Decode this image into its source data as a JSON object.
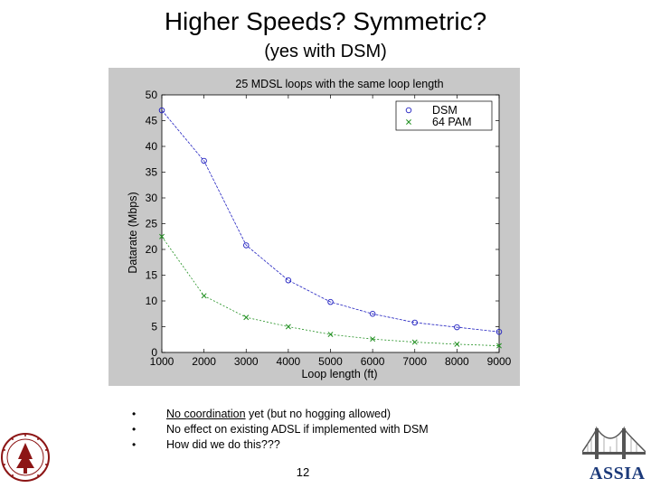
{
  "slide": {
    "title": "Higher Speeds? Symmetric?",
    "subtitle": "(yes with DSM)",
    "bullets": [
      {
        "underlined": "No coordination",
        "rest": " yet (but no hogging allowed)"
      },
      {
        "underlined": "",
        "rest": "No effect on existing ADSL if implemented with DSM"
      },
      {
        "underlined": "",
        "rest": "How did we do this???"
      }
    ],
    "page_number": "12",
    "assia_logo_text": "ASSIA"
  },
  "chart_data": {
    "type": "line",
    "title": "25 MDSL loops with the same loop length",
    "xlabel": "Loop length (ft)",
    "ylabel": "Datarate (Mbps)",
    "xlim": [
      1000,
      9000
    ],
    "ylim": [
      0,
      50
    ],
    "x_ticks": [
      1000,
      2000,
      3000,
      4000,
      5000,
      6000,
      7000,
      8000,
      9000
    ],
    "y_ticks": [
      0,
      5,
      10,
      15,
      20,
      25,
      30,
      35,
      40,
      45,
      50
    ],
    "grid": false,
    "legend_position": "top-right",
    "series": [
      {
        "name": "DSM",
        "marker": "o",
        "color": "#2020c0",
        "x": [
          1000,
          2000,
          3000,
          4000,
          5000,
          6000,
          7000,
          8000,
          9000
        ],
        "y": [
          47,
          37.2,
          20.8,
          14.0,
          9.8,
          7.5,
          5.8,
          4.9,
          4.0
        ]
      },
      {
        "name": "64 PAM",
        "marker": "x",
        "color": "#1f8f1f",
        "x": [
          1000,
          2000,
          3000,
          4000,
          5000,
          6000,
          7000,
          8000,
          9000
        ],
        "y": [
          22.5,
          11.0,
          6.8,
          5.0,
          3.5,
          2.6,
          2.0,
          1.6,
          1.3
        ]
      }
    ]
  }
}
